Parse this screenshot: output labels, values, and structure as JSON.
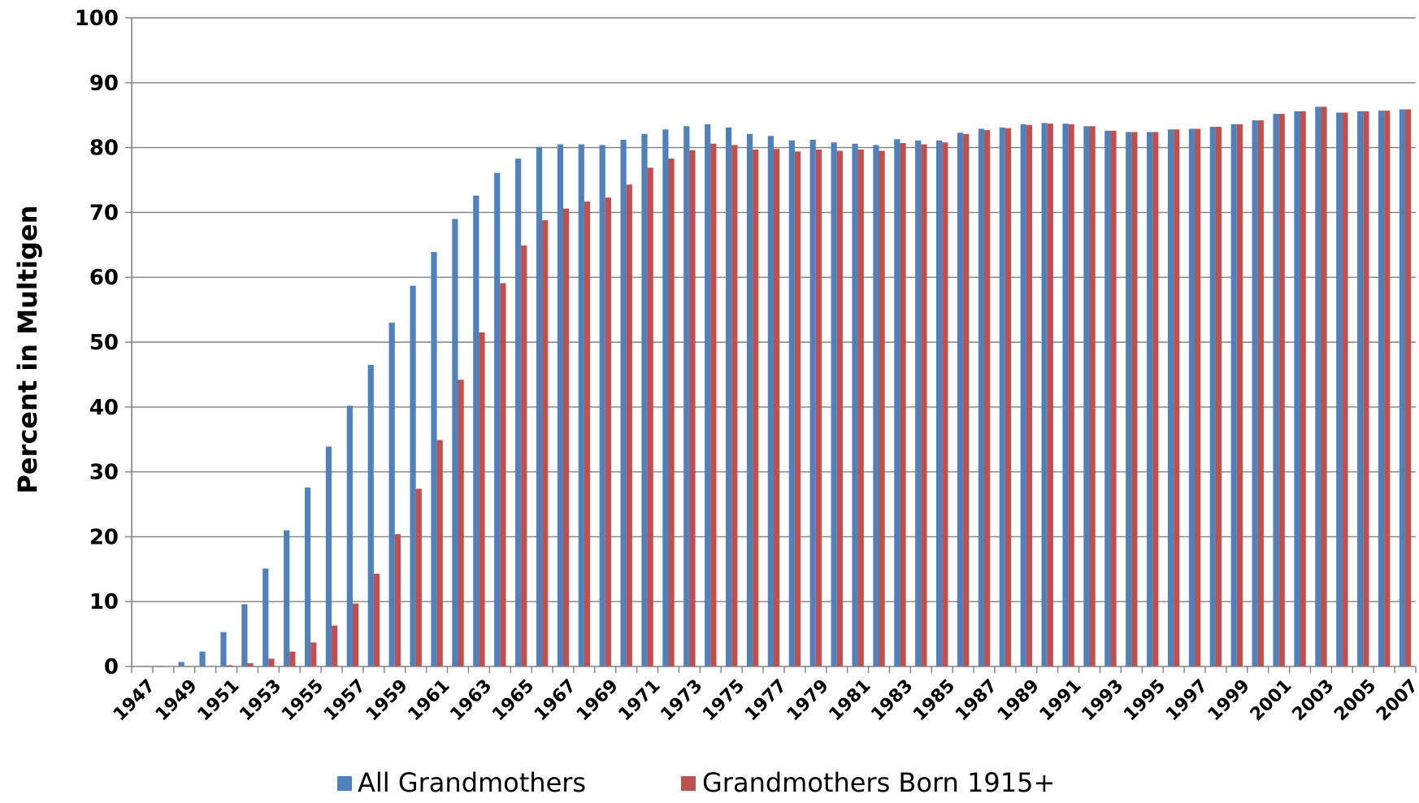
{
  "chart_data": {
    "type": "bar",
    "ylabel": "Percent in Multigen",
    "xlabel": "",
    "ylim": [
      0,
      100
    ],
    "yticks": [
      0,
      10,
      20,
      30,
      40,
      50,
      60,
      70,
      80,
      90,
      100
    ],
    "grid": "horizontal",
    "legend_position": "bottom",
    "colors": {
      "series_0": "#4f81bd",
      "series_1": "#c0504d",
      "grid": "#808080",
      "axis": "#808080"
    },
    "x_tick_labels": [
      "1947",
      "1949",
      "1951",
      "1953",
      "1955",
      "1957",
      "1959",
      "1961",
      "1963",
      "1965",
      "1967",
      "1969",
      "1971",
      "1973",
      "1975",
      "1977",
      "1979",
      "1981",
      "1983",
      "1985",
      "1987",
      "1989",
      "1991",
      "1993",
      "1995",
      "1997",
      "1999",
      "2001",
      "2003",
      "2005",
      "2007"
    ],
    "categories": [
      1947,
      1948,
      1949,
      1950,
      1951,
      1952,
      1953,
      1954,
      1955,
      1956,
      1957,
      1958,
      1959,
      1960,
      1961,
      1962,
      1963,
      1964,
      1965,
      1966,
      1967,
      1968,
      1969,
      1970,
      1971,
      1972,
      1973,
      1974,
      1975,
      1976,
      1977,
      1978,
      1979,
      1980,
      1981,
      1982,
      1983,
      1984,
      1985,
      1986,
      1987,
      1988,
      1989,
      1990,
      1991,
      1992,
      1993,
      1994,
      1995,
      1996,
      1997,
      1998,
      1999,
      2000,
      2001,
      2002,
      2003,
      2004,
      2005,
      2006,
      2007
    ],
    "series": [
      {
        "name": "All Grandmothers",
        "values": [
          0.0,
          0.1,
          0.7,
          2.3,
          5.3,
          9.6,
          15.1,
          21.0,
          27.6,
          33.9,
          40.2,
          46.5,
          53.0,
          58.7,
          63.9,
          69.0,
          72.6,
          76.1,
          78.3,
          80.1,
          80.5,
          80.5,
          80.4,
          81.2,
          82.1,
          82.8,
          83.3,
          83.6,
          83.1,
          82.1,
          81.8,
          81.1,
          81.2,
          80.8,
          80.6,
          80.4,
          81.3,
          81.1,
          81.1,
          82.3,
          82.9,
          83.1,
          83.6,
          83.8,
          83.7,
          83.3,
          82.6,
          82.4,
          82.4,
          82.8,
          82.9,
          83.2,
          83.6,
          84.2,
          85.2,
          85.6,
          86.3,
          85.4,
          85.6,
          85.7,
          85.9
        ]
      },
      {
        "name": "Grandmothers Born 1915+",
        "values": [
          0.0,
          0.0,
          0.0,
          0.0,
          0.2,
          0.5,
          1.2,
          2.3,
          3.7,
          6.3,
          9.7,
          14.3,
          20.4,
          27.4,
          34.9,
          44.2,
          51.5,
          59.1,
          64.9,
          68.8,
          70.6,
          71.7,
          72.3,
          74.3,
          76.9,
          78.3,
          79.6,
          80.6,
          80.4,
          79.7,
          79.8,
          79.4,
          79.7,
          79.5,
          79.7,
          79.5,
          80.7,
          80.5,
          80.8,
          82.1,
          82.7,
          83.0,
          83.5,
          83.7,
          83.6,
          83.3,
          82.6,
          82.4,
          82.4,
          82.8,
          82.9,
          83.2,
          83.6,
          84.2,
          85.2,
          85.6,
          86.3,
          85.4,
          85.6,
          85.7,
          85.9
        ]
      }
    ]
  }
}
